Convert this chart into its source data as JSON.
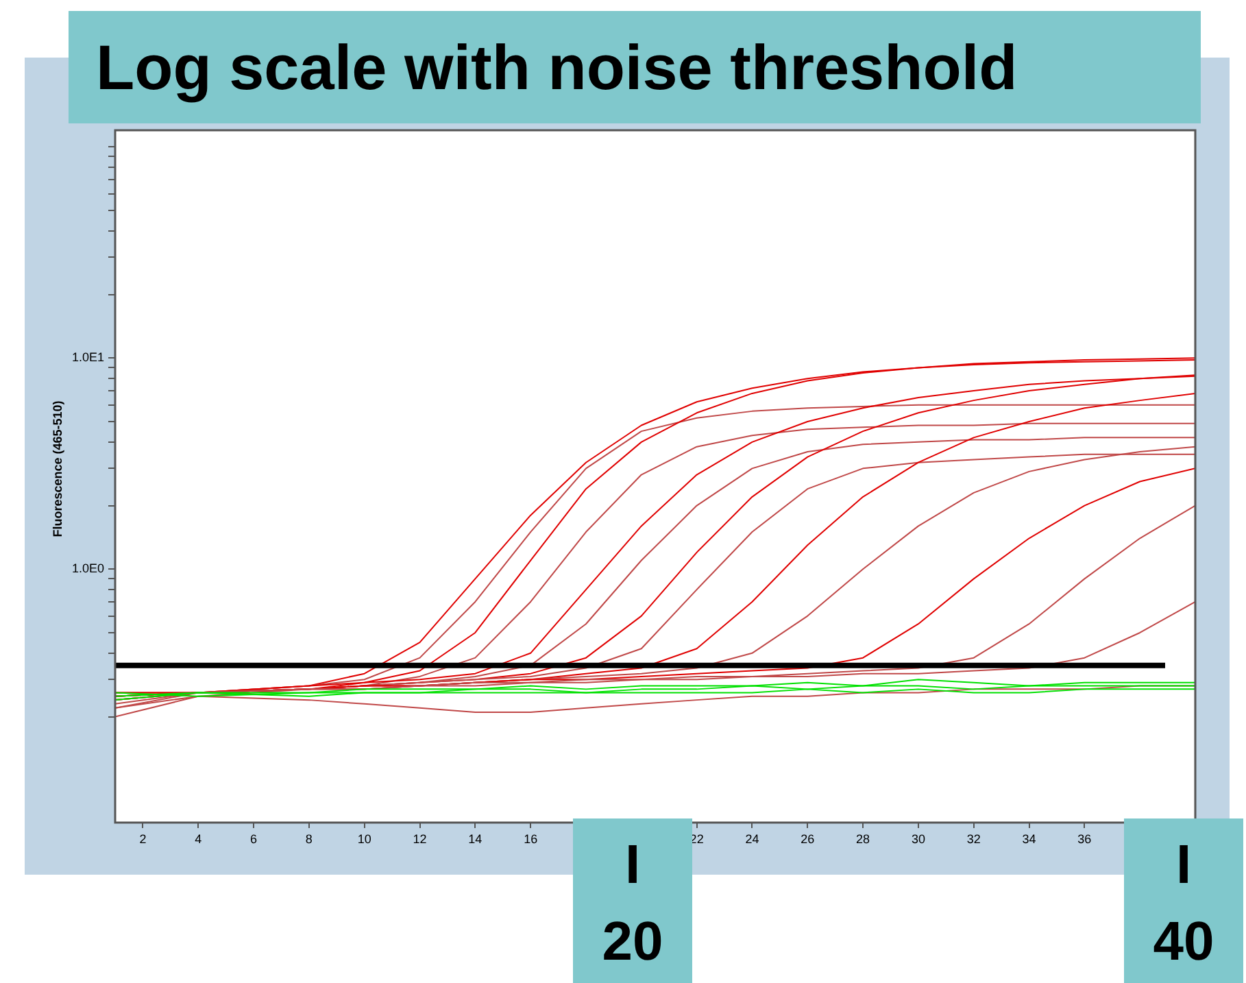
{
  "chart_data": {
    "type": "line",
    "title": "Log scale with noise threshold",
    "ylabel": "Fluorescence (465-510)",
    "x": [
      1,
      4,
      8,
      10,
      12,
      14,
      16,
      18,
      20,
      22,
      24,
      26,
      28,
      30,
      32,
      34,
      36,
      38,
      40
    ],
    "series": [
      {
        "color": "#e00000",
        "values": [
          0.24,
          0.26,
          0.28,
          0.32,
          0.45,
          0.9,
          1.8,
          3.2,
          4.8,
          6.2,
          7.2,
          8,
          8.6,
          9,
          9.3,
          9.5,
          9.6,
          9.7,
          9.8
        ]
      },
      {
        "color": "#c04848",
        "values": [
          0.22,
          0.26,
          0.28,
          0.3,
          0.38,
          0.7,
          1.5,
          3,
          4.5,
          5.2,
          5.6,
          5.8,
          5.9,
          6,
          6,
          6,
          6,
          6,
          6
        ]
      },
      {
        "color": "#e00000",
        "values": [
          0.25,
          0.26,
          0.27,
          0.29,
          0.33,
          0.5,
          1.1,
          2.4,
          4,
          5.5,
          6.8,
          7.8,
          8.5,
          9,
          9.4,
          9.6,
          9.8,
          9.9,
          10
        ]
      },
      {
        "color": "#c04848",
        "values": [
          0.23,
          0.26,
          0.27,
          0.28,
          0.31,
          0.38,
          0.7,
          1.5,
          2.8,
          3.8,
          4.3,
          4.6,
          4.7,
          4.8,
          4.8,
          4.9,
          4.9,
          4.9,
          4.9
        ]
      },
      {
        "color": "#e00000",
        "values": [
          0.26,
          0.26,
          0.28,
          0.29,
          0.3,
          0.32,
          0.4,
          0.8,
          1.6,
          2.8,
          4,
          5,
          5.8,
          6.5,
          7,
          7.5,
          7.8,
          8,
          8.2
        ]
      },
      {
        "color": "#c04848",
        "values": [
          0.25,
          0.26,
          0.27,
          0.28,
          0.29,
          0.31,
          0.35,
          0.55,
          1.1,
          2,
          3,
          3.6,
          3.9,
          4,
          4.1,
          4.1,
          4.2,
          4.2,
          4.2
        ]
      },
      {
        "color": "#e00000",
        "values": [
          0.25,
          0.26,
          0.27,
          0.28,
          0.29,
          0.3,
          0.32,
          0.38,
          0.6,
          1.2,
          2.2,
          3.4,
          4.5,
          5.5,
          6.3,
          7,
          7.5,
          8,
          8.3
        ]
      },
      {
        "color": "#c04848",
        "values": [
          0.22,
          0.25,
          0.27,
          0.28,
          0.29,
          0.3,
          0.31,
          0.34,
          0.42,
          0.8,
          1.5,
          2.4,
          3,
          3.2,
          3.3,
          3.4,
          3.5,
          3.5,
          3.5
        ]
      },
      {
        "color": "#e00000",
        "values": [
          0.25,
          0.26,
          0.27,
          0.27,
          0.28,
          0.29,
          0.3,
          0.32,
          0.34,
          0.42,
          0.7,
          1.3,
          2.2,
          3.2,
          4.2,
          5,
          5.8,
          6.3,
          6.8
        ]
      },
      {
        "color": "#c04848",
        "values": [
          0.24,
          0.26,
          0.27,
          0.28,
          0.28,
          0.29,
          0.3,
          0.31,
          0.32,
          0.34,
          0.4,
          0.6,
          1,
          1.6,
          2.3,
          2.9,
          3.3,
          3.6,
          3.8
        ]
      },
      {
        "color": "#e00000",
        "values": [
          0.26,
          0.26,
          0.27,
          0.28,
          0.28,
          0.29,
          0.3,
          0.3,
          0.31,
          0.32,
          0.33,
          0.34,
          0.38,
          0.55,
          0.9,
          1.4,
          2,
          2.6,
          3
        ]
      },
      {
        "color": "#c04848",
        "values": [
          0.25,
          0.26,
          0.27,
          0.27,
          0.28,
          0.29,
          0.29,
          0.3,
          0.3,
          0.31,
          0.31,
          0.32,
          0.33,
          0.34,
          0.38,
          0.55,
          0.9,
          1.4,
          2
        ]
      },
      {
        "color": "#c04848",
        "values": [
          0.24,
          0.26,
          0.27,
          0.27,
          0.28,
          0.28,
          0.29,
          0.29,
          0.3,
          0.3,
          0.31,
          0.31,
          0.32,
          0.32,
          0.33,
          0.34,
          0.38,
          0.5,
          0.7
        ]
      },
      {
        "color": "#c04848",
        "values": [
          0.2,
          0.25,
          0.24,
          0.23,
          0.22,
          0.21,
          0.21,
          0.22,
          0.23,
          0.24,
          0.25,
          0.25,
          0.26,
          0.26,
          0.27,
          0.27,
          0.27,
          0.28,
          0.28
        ]
      },
      {
        "color": "#00e000",
        "values": [
          0.24,
          0.26,
          0.26,
          0.27,
          0.27,
          0.27,
          0.28,
          0.27,
          0.28,
          0.28,
          0.28,
          0.29,
          0.28,
          0.3,
          0.29,
          0.28,
          0.29,
          0.29,
          0.29
        ]
      },
      {
        "color": "#00e000",
        "values": [
          0.26,
          0.25,
          0.26,
          0.26,
          0.26,
          0.27,
          0.27,
          0.26,
          0.27,
          0.27,
          0.28,
          0.27,
          0.28,
          0.28,
          0.27,
          0.28,
          0.28,
          0.28,
          0.28
        ]
      },
      {
        "color": "#00e000",
        "values": [
          0.25,
          0.26,
          0.25,
          0.26,
          0.26,
          0.26,
          0.26,
          0.26,
          0.26,
          0.26,
          0.26,
          0.27,
          0.26,
          0.27,
          0.26,
          0.26,
          0.27,
          0.27,
          0.27
        ]
      }
    ],
    "log": "y",
    "xlim": [
      1,
      40
    ],
    "ylim": [
      0.063,
      120
    ],
    "xticks": [
      2,
      4,
      6,
      8,
      10,
      12,
      14,
      16,
      22,
      24,
      26,
      28,
      30,
      32,
      34,
      36
    ],
    "yticks": [
      {
        "value": 0.2,
        "label": null
      },
      {
        "value": 0.3,
        "label": null
      },
      {
        "value": 0.4,
        "label": null
      },
      {
        "value": 0.5,
        "label": null
      },
      {
        "value": 0.6,
        "label": null
      },
      {
        "value": 0.7,
        "label": null
      },
      {
        "value": 0.8,
        "label": null
      },
      {
        "value": 0.9,
        "label": null
      },
      {
        "value": 1,
        "label": "1.0E0"
      },
      {
        "value": 2,
        "label": null
      },
      {
        "value": 3,
        "label": null
      },
      {
        "value": 4,
        "label": null
      },
      {
        "value": 5,
        "label": null
      },
      {
        "value": 6,
        "label": null
      },
      {
        "value": 7,
        "label": null
      },
      {
        "value": 8,
        "label": null
      },
      {
        "value": 9,
        "label": null
      },
      {
        "value": 10,
        "label": "1.0E1"
      },
      {
        "value": 20,
        "label": null
      },
      {
        "value": 30,
        "label": null
      },
      {
        "value": 40,
        "label": null
      },
      {
        "value": 50,
        "label": null
      },
      {
        "value": 60,
        "label": null
      },
      {
        "value": 70,
        "label": null
      },
      {
        "value": 80,
        "label": null
      },
      {
        "value": 90,
        "label": null
      },
      {
        "value": 100,
        "label": null
      }
    ],
    "ref_lines": [
      {
        "axis": "y",
        "value": 0.35,
        "color": "#000000"
      }
    ],
    "annotations": [
      "I\n20",
      "I\n40"
    ],
    "grid": false,
    "legend": false,
    "marker": "none",
    "line_style": "solid"
  }
}
